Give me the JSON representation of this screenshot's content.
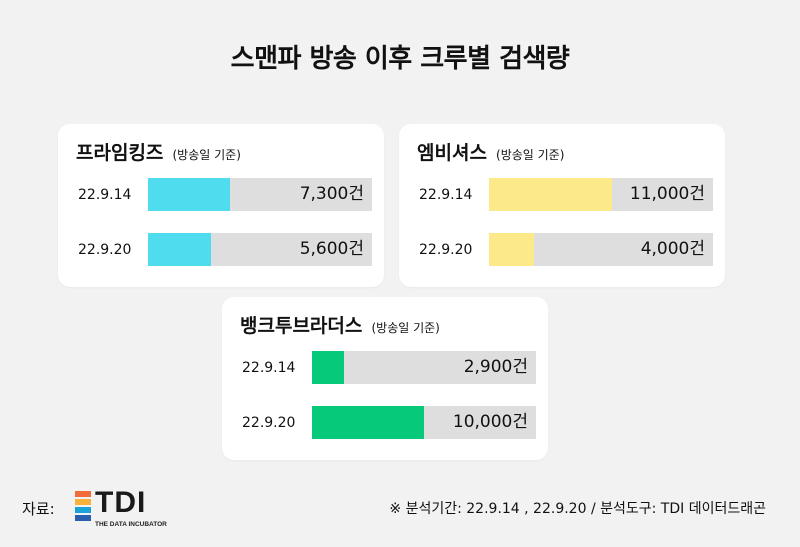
{
  "page": {
    "title": "스맨파 방송 이후  크루별 검색량",
    "footer_label": "자료:",
    "logo_text": "TDI",
    "logo_subtitle": "THE DATA INCUBATOR",
    "source": "※ 분석기간: 22.9.14 , 22.9.20 / 분석도구: TDI 데이터드래곤"
  },
  "colors": {
    "cyan": "#4fdcef",
    "yellow": "#fbe98a",
    "green": "#06c97a",
    "track": "#dedede"
  },
  "chart_data": [
    {
      "type": "bar",
      "title": "프라임킹즈",
      "subtitle": "(방송일 기준)",
      "color": "#4fdcef",
      "categories": [
        "22.9.14",
        "22.9.20"
      ],
      "values": [
        7300,
        5600
      ],
      "value_labels": [
        "7,300건",
        "5,600건"
      ],
      "xlim": [
        0,
        20000
      ]
    },
    {
      "type": "bar",
      "title": "엠비셔스",
      "subtitle": "(방송일 기준)",
      "color": "#fbe98a",
      "categories": [
        "22.9.14",
        "22.9.20"
      ],
      "values": [
        11000,
        4000
      ],
      "value_labels": [
        "11,000건",
        "4,000건"
      ],
      "xlim": [
        0,
        20000
      ]
    },
    {
      "type": "bar",
      "title": "뱅크투브라더스",
      "subtitle": "(방송일 기준)",
      "color": "#06c97a",
      "categories": [
        "22.9.14",
        "22.9.20"
      ],
      "values": [
        2900,
        10000
      ],
      "value_labels": [
        "2,900건",
        "10,000건"
      ],
      "xlim": [
        0,
        20000
      ]
    }
  ]
}
